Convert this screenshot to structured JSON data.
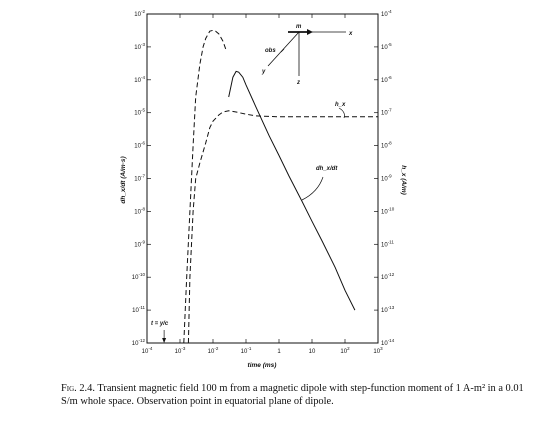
{
  "chart_data": {
    "type": "line",
    "xscale": "log",
    "yscale_left": "log",
    "yscale_right": "log",
    "xlim": [
      0.0001,
      1000
    ],
    "ylim_left": [
      1e-12,
      0.01
    ],
    "ylim_right": [
      1e-14,
      0.0001
    ],
    "xlabel": "time (ms)",
    "ylabel_left": "dh_x/dt (A/m·s)",
    "ylabel_right": "h_x (A/m)",
    "x_ticks": [
      {
        "value": 0.0001,
        "base": "10",
        "exp": "-4"
      },
      {
        "value": 0.001,
        "base": "10",
        "exp": "-3"
      },
      {
        "value": 0.01,
        "base": "10",
        "exp": "-2"
      },
      {
        "value": 0.1,
        "base": "10",
        "exp": "-1"
      },
      {
        "value": 1,
        "base": "1",
        "exp": ""
      },
      {
        "value": 10,
        "base": "10",
        "exp": ""
      },
      {
        "value": 100,
        "base": "10",
        "exp": "2"
      },
      {
        "value": 1000,
        "base": "10",
        "exp": "3"
      }
    ],
    "y_ticks_left": [
      {
        "value": 0.01,
        "exp": "-2"
      },
      {
        "value": 0.001,
        "exp": "-3"
      },
      {
        "value": 0.0001,
        "exp": "-4"
      },
      {
        "value": 1e-05,
        "exp": "-5"
      },
      {
        "value": 1e-06,
        "exp": "-6"
      },
      {
        "value": 1e-07,
        "exp": "-7"
      },
      {
        "value": 1e-08,
        "exp": "-8"
      },
      {
        "value": 1e-09,
        "exp": "-9"
      },
      {
        "value": 1e-10,
        "exp": "-10"
      },
      {
        "value": 1e-11,
        "exp": "-11"
      },
      {
        "value": 1e-12,
        "exp": "-12"
      }
    ],
    "y_ticks_right": [
      {
        "value": 0.0001,
        "exp": "-4"
      },
      {
        "value": 1e-05,
        "exp": "-5"
      },
      {
        "value": 1e-06,
        "exp": "-6"
      },
      {
        "value": 1e-07,
        "exp": "-7"
      },
      {
        "value": 1e-08,
        "exp": "-8"
      },
      {
        "value": 1e-09,
        "exp": "-9"
      },
      {
        "value": 1e-10,
        "exp": "-10"
      },
      {
        "value": 1e-11,
        "exp": "-11"
      },
      {
        "value": 1e-12,
        "exp": "-12"
      },
      {
        "value": 1e-13,
        "exp": "-13"
      },
      {
        "value": 1e-14,
        "exp": "-14"
      }
    ],
    "series": [
      {
        "name": "dh_x/dt",
        "axis": "left",
        "style": "solid",
        "x": [
          0.03,
          0.04,
          0.05,
          0.06,
          0.08,
          0.1,
          0.2,
          0.5,
          1,
          2,
          5,
          10,
          20,
          50,
          100,
          200
        ],
        "y": [
          3e-05,
          0.00012,
          0.00018,
          0.00017,
          0.00012,
          7e-05,
          1.5e-05,
          2e-06,
          5e-07,
          1.2e-07,
          2e-08,
          5e-09,
          1.3e-09,
          2e-10,
          4e-11,
          1e-11
        ]
      },
      {
        "name": "dh_x/dt (dashed)",
        "axis": "left",
        "style": "dashed",
        "x": [
          0.0013,
          0.0016,
          0.002,
          0.0025,
          0.003,
          0.004,
          0.005,
          0.006,
          0.008,
          0.01,
          0.012,
          0.015,
          0.02,
          0.025
        ],
        "y": [
          1e-12,
          1e-10,
          1e-08,
          1e-06,
          3e-05,
          0.0003,
          0.001,
          0.0018,
          0.003,
          0.0032,
          0.003,
          0.0025,
          0.0015,
          0.0008
        ]
      },
      {
        "name": "h_x",
        "axis": "right",
        "style": "dashed",
        "x": [
          0.0018,
          0.002,
          0.0025,
          0.003,
          0.004,
          0.006,
          0.008,
          0.01,
          0.015,
          0.02,
          0.03,
          0.05,
          0.1,
          0.2,
          0.5,
          1,
          10,
          100,
          1000
        ],
        "y": [
          1e-14,
          1e-12,
          1e-10,
          1e-09,
          3e-09,
          1.2e-08,
          3.5e-08,
          5.5e-08,
          8.5e-08,
          1.05e-07,
          1.15e-07,
          1.05e-07,
          9e-08,
          8e-08,
          7.7e-08,
          7.5e-08,
          7.5e-08,
          7.5e-08,
          7.5e-08
        ]
      }
    ],
    "annotations": {
      "hx_label": "h_x",
      "dhdt_label": "dh_x/dt",
      "tyc_label": "t = y/c",
      "tyc_x": 0.00033,
      "inset": {
        "m": "m",
        "obs": "obs",
        "x": "x",
        "y": "y",
        "z": "z"
      }
    }
  },
  "caption": {
    "label": "Fig. 2.4.",
    "text": "Transient magnetic field 100 m from a magnetic dipole with step-function moment of 1 A-m² in a 0.01 S/m whole space. Observation point in equatorial plane of dipole."
  }
}
